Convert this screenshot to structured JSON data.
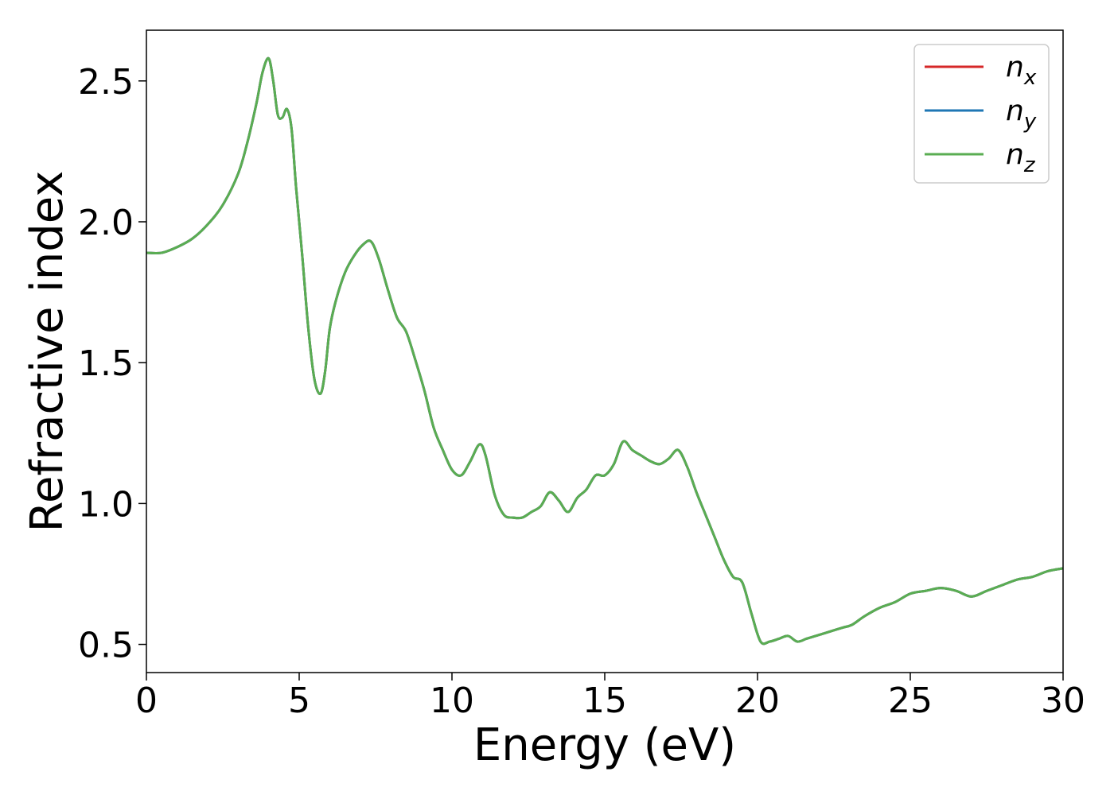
{
  "chart_data": {
    "type": "line",
    "title": "",
    "xlabel": "Energy (eV)",
    "ylabel": "Refractive index",
    "xlim": [
      0,
      30
    ],
    "ylim": [
      0.4,
      2.68
    ],
    "xticks": [
      0,
      5,
      10,
      15,
      20,
      25,
      30
    ],
    "xtick_labels": [
      "0",
      "5",
      "10",
      "15",
      "20",
      "25",
      "30"
    ],
    "yticks": [
      0.5,
      1.0,
      1.5,
      2.0,
      2.5
    ],
    "ytick_labels": [
      "0.5",
      "1.0",
      "1.5",
      "2.0",
      "2.5"
    ],
    "grid": false,
    "legend_position": "top-right",
    "x": [
      0.0,
      0.5,
      1.0,
      1.5,
      2.0,
      2.5,
      3.0,
      3.3,
      3.6,
      3.8,
      4.0,
      4.15,
      4.3,
      4.45,
      4.6,
      4.75,
      4.9,
      5.1,
      5.3,
      5.5,
      5.7,
      5.85,
      6.0,
      6.2,
      6.5,
      6.8,
      7.1,
      7.35,
      7.6,
      7.9,
      8.2,
      8.5,
      8.8,
      9.1,
      9.4,
      9.7,
      10.0,
      10.3,
      10.6,
      10.9,
      11.1,
      11.4,
      11.7,
      12.0,
      12.3,
      12.6,
      12.9,
      13.2,
      13.5,
      13.8,
      14.1,
      14.4,
      14.7,
      15.0,
      15.3,
      15.6,
      15.9,
      16.2,
      16.5,
      16.8,
      17.1,
      17.4,
      17.7,
      18.0,
      18.3,
      18.6,
      18.9,
      19.2,
      19.5,
      19.8,
      20.1,
      20.4,
      20.7,
      21.0,
      21.3,
      21.6,
      21.9,
      22.2,
      22.5,
      22.8,
      23.1,
      23.5,
      24.0,
      24.5,
      25.0,
      25.5,
      26.0,
      26.5,
      27.0,
      27.5,
      28.0,
      28.5,
      29.0,
      29.5,
      30.0
    ],
    "series": [
      {
        "name": "n_x",
        "name_base": "n",
        "name_sub": "x",
        "color": "#d62728",
        "values": [
          1.89,
          1.89,
          1.91,
          1.94,
          1.99,
          2.06,
          2.17,
          2.28,
          2.42,
          2.53,
          2.58,
          2.5,
          2.38,
          2.37,
          2.4,
          2.33,
          2.12,
          1.88,
          1.62,
          1.44,
          1.39,
          1.47,
          1.62,
          1.72,
          1.82,
          1.88,
          1.92,
          1.93,
          1.87,
          1.76,
          1.66,
          1.61,
          1.51,
          1.4,
          1.27,
          1.19,
          1.12,
          1.1,
          1.15,
          1.21,
          1.17,
          1.03,
          0.96,
          0.95,
          0.95,
          0.97,
          0.99,
          1.04,
          1.01,
          0.97,
          1.02,
          1.05,
          1.1,
          1.1,
          1.14,
          1.22,
          1.19,
          1.17,
          1.15,
          1.14,
          1.16,
          1.19,
          1.13,
          1.04,
          0.96,
          0.88,
          0.8,
          0.74,
          0.72,
          0.61,
          0.51,
          0.51,
          0.52,
          0.53,
          0.51,
          0.52,
          0.53,
          0.54,
          0.55,
          0.56,
          0.57,
          0.6,
          0.63,
          0.65,
          0.68,
          0.69,
          0.7,
          0.69,
          0.67,
          0.69,
          0.71,
          0.73,
          0.74,
          0.76,
          0.77
        ]
      },
      {
        "name": "n_y",
        "name_base": "n",
        "name_sub": "y",
        "color": "#1f77b4",
        "values": [
          1.89,
          1.89,
          1.91,
          1.94,
          1.99,
          2.06,
          2.17,
          2.28,
          2.42,
          2.53,
          2.58,
          2.5,
          2.38,
          2.37,
          2.4,
          2.33,
          2.12,
          1.88,
          1.62,
          1.44,
          1.39,
          1.47,
          1.62,
          1.72,
          1.82,
          1.88,
          1.92,
          1.93,
          1.87,
          1.76,
          1.66,
          1.61,
          1.51,
          1.4,
          1.27,
          1.19,
          1.12,
          1.1,
          1.15,
          1.21,
          1.17,
          1.03,
          0.96,
          0.95,
          0.95,
          0.97,
          0.99,
          1.04,
          1.01,
          0.97,
          1.02,
          1.05,
          1.1,
          1.1,
          1.14,
          1.22,
          1.19,
          1.17,
          1.15,
          1.14,
          1.16,
          1.19,
          1.13,
          1.04,
          0.96,
          0.88,
          0.8,
          0.74,
          0.72,
          0.61,
          0.51,
          0.51,
          0.52,
          0.53,
          0.51,
          0.52,
          0.53,
          0.54,
          0.55,
          0.56,
          0.57,
          0.6,
          0.63,
          0.65,
          0.68,
          0.69,
          0.7,
          0.69,
          0.67,
          0.69,
          0.71,
          0.73,
          0.74,
          0.76,
          0.77
        ]
      },
      {
        "name": "n_z",
        "name_base": "n",
        "name_sub": "z",
        "color": "#5aad52",
        "values": [
          1.89,
          1.89,
          1.91,
          1.94,
          1.99,
          2.06,
          2.17,
          2.28,
          2.42,
          2.53,
          2.58,
          2.5,
          2.38,
          2.37,
          2.4,
          2.33,
          2.12,
          1.88,
          1.62,
          1.44,
          1.39,
          1.47,
          1.62,
          1.72,
          1.82,
          1.88,
          1.92,
          1.93,
          1.87,
          1.76,
          1.66,
          1.61,
          1.51,
          1.4,
          1.27,
          1.19,
          1.12,
          1.1,
          1.15,
          1.21,
          1.17,
          1.03,
          0.96,
          0.95,
          0.95,
          0.97,
          0.99,
          1.04,
          1.01,
          0.97,
          1.02,
          1.05,
          1.1,
          1.1,
          1.14,
          1.22,
          1.19,
          1.17,
          1.15,
          1.14,
          1.16,
          1.19,
          1.13,
          1.04,
          0.96,
          0.88,
          0.8,
          0.74,
          0.72,
          0.61,
          0.51,
          0.51,
          0.52,
          0.53,
          0.51,
          0.52,
          0.53,
          0.54,
          0.55,
          0.56,
          0.57,
          0.6,
          0.63,
          0.65,
          0.68,
          0.69,
          0.7,
          0.69,
          0.67,
          0.69,
          0.71,
          0.73,
          0.74,
          0.76,
          0.77
        ]
      }
    ]
  }
}
